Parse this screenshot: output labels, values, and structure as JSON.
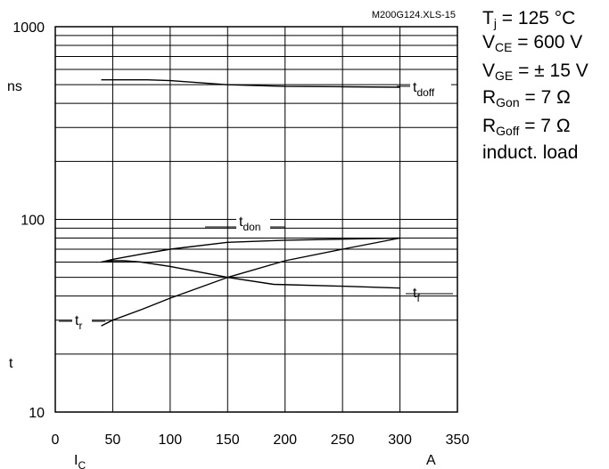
{
  "chart_data": {
    "type": "line",
    "title": "",
    "watermark": "M200G124.XLS-15",
    "xaxis": {
      "min": 0,
      "max": 350,
      "ticks": [
        0,
        50,
        100,
        150,
        200,
        250,
        300,
        350
      ],
      "label_main": "I",
      "label_sub": "C",
      "unit": "A"
    },
    "yaxis": {
      "scale": "log",
      "min": 10,
      "max": 1000,
      "ticks": [
        10,
        100,
        1000
      ],
      "unit": "ns",
      "label": "t"
    },
    "grid": true,
    "series": [
      {
        "name_main": "t",
        "name_sub": "doff",
        "x": [
          40,
          60,
          80,
          100,
          150,
          200,
          250,
          300
        ],
        "y": [
          530,
          530,
          530,
          525,
          500,
          490,
          488,
          485
        ]
      },
      {
        "name_main": "t",
        "name_sub": "don",
        "x": [
          40,
          50,
          75,
          100,
          150,
          200,
          250,
          300
        ],
        "y": [
          60,
          62,
          66,
          70,
          76,
          78,
          79,
          80
        ]
      },
      {
        "name_main": "t",
        "name_sub": "f",
        "x": [
          40,
          50,
          60,
          75,
          100,
          150,
          190,
          250,
          300
        ],
        "y": [
          60,
          61,
          61,
          60,
          57,
          50,
          46,
          45,
          44
        ]
      },
      {
        "name_main": "t",
        "name_sub": "r",
        "x": [
          40,
          50,
          75,
          100,
          150,
          200,
          250,
          300
        ],
        "y": [
          28,
          30,
          34,
          39,
          50,
          61,
          70,
          80
        ]
      }
    ]
  },
  "conditions": {
    "tj": {
      "sym": "T",
      "sub": "j",
      "val": " = 125 °C"
    },
    "vce": {
      "sym": "V",
      "sub": "CE",
      "val": " = 600 V"
    },
    "vge": {
      "sym": "V",
      "sub": "GE",
      "val": " = ± 15 V"
    },
    "rgon": {
      "sym": "R",
      "sub": "Gon",
      "val": " = 7 Ω"
    },
    "rgoff": {
      "sym": "R",
      "sub": "Goff",
      "val": " = 7 Ω"
    },
    "load": "induct. load"
  }
}
